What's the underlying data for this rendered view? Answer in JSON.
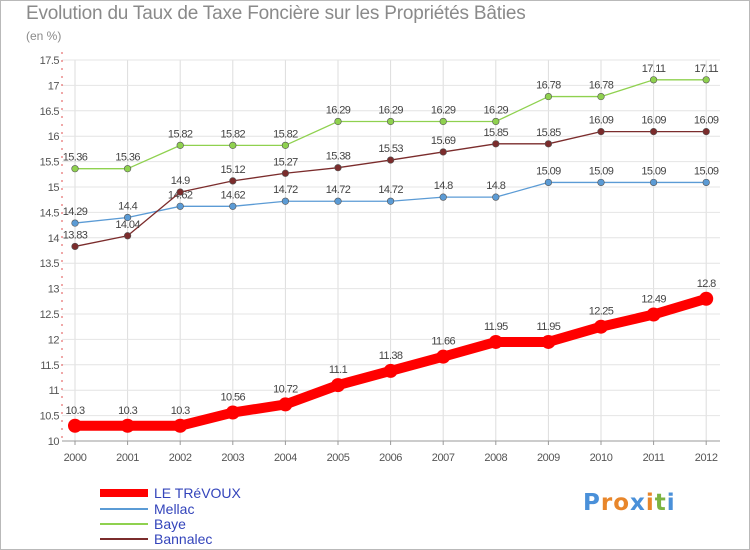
{
  "chart_data": {
    "type": "line",
    "title": "Evolution du Taux de Taxe Foncière sur les Propriétés Bâties",
    "subtitle": "(en %)",
    "categories": [
      "2000",
      "2001",
      "2002",
      "2003",
      "2004",
      "2005",
      "2006",
      "2007",
      "2008",
      "2009",
      "2010",
      "2011",
      "2012"
    ],
    "ylim": [
      10,
      17.5
    ],
    "yticks": [
      "10",
      "10.5",
      "11",
      "11.5",
      "12",
      "12.5",
      "13",
      "13.5",
      "14",
      "14.5",
      "15",
      "15.5",
      "16",
      "16.5",
      "17",
      "17.5"
    ],
    "grid": true,
    "legend_position": "bottom-left",
    "series": [
      {
        "name": "LE TRéVOUX",
        "color": "#ff0000",
        "values": [
          10.3,
          10.3,
          10.3,
          10.56,
          10.72,
          11.1,
          11.38,
          11.66,
          11.95,
          11.95,
          12.25,
          12.49,
          12.8
        ],
        "labels": [
          "10.3",
          "10.3",
          "10.3",
          "10.56",
          "10.72",
          "11.1",
          "11.38",
          "11.66",
          "11.95",
          "11.95",
          "12.25",
          "12.49",
          "12.8"
        ]
      },
      {
        "name": "Mellac",
        "color": "#5b9bd5",
        "values": [
          14.29,
          14.4,
          14.62,
          14.62,
          14.72,
          14.72,
          14.72,
          14.8,
          14.8,
          15.09,
          15.09,
          15.09,
          15.09
        ],
        "labels": [
          "14.29",
          "14.4",
          "14.62",
          "14.62",
          "14.72",
          "14.72",
          "14.72",
          "14.8",
          "14.8",
          "15.09",
          "15.09",
          "15.09",
          "15.09"
        ]
      },
      {
        "name": "Baye",
        "color": "#8fd14f",
        "values": [
          15.36,
          15.36,
          15.82,
          15.82,
          15.82,
          16.29,
          16.29,
          16.29,
          16.29,
          16.78,
          16.78,
          17.11,
          17.11
        ],
        "labels": [
          "15.36",
          "15.36",
          "15.82",
          "15.82",
          "15.82",
          "16.29",
          "16.29",
          "16.29",
          "16.29",
          "16.78",
          "16.78",
          "17.11",
          "17.11"
        ]
      },
      {
        "name": "Bannalec",
        "color": "#7b2c2c",
        "values": [
          13.83,
          14.04,
          14.9,
          15.12,
          15.27,
          15.38,
          15.53,
          15.69,
          15.85,
          15.85,
          16.09,
          16.09,
          16.09
        ],
        "labels": [
          "13.83",
          "14.04",
          "14.9",
          "15.12",
          "15.27",
          "15.38",
          "15.53",
          "15.69",
          "15.85",
          "15.85",
          "16.09",
          "16.09",
          "16.09"
        ]
      }
    ]
  },
  "logo": {
    "text": "Proxiti",
    "letters": [
      "P",
      "r",
      "o",
      "x",
      "i",
      "t",
      "i"
    ],
    "colors": [
      "#4a90d9",
      "#e8862a",
      "#e8862a",
      "#4a90d9",
      "#e8862a",
      "#7cb342",
      "#4a90d9"
    ]
  }
}
